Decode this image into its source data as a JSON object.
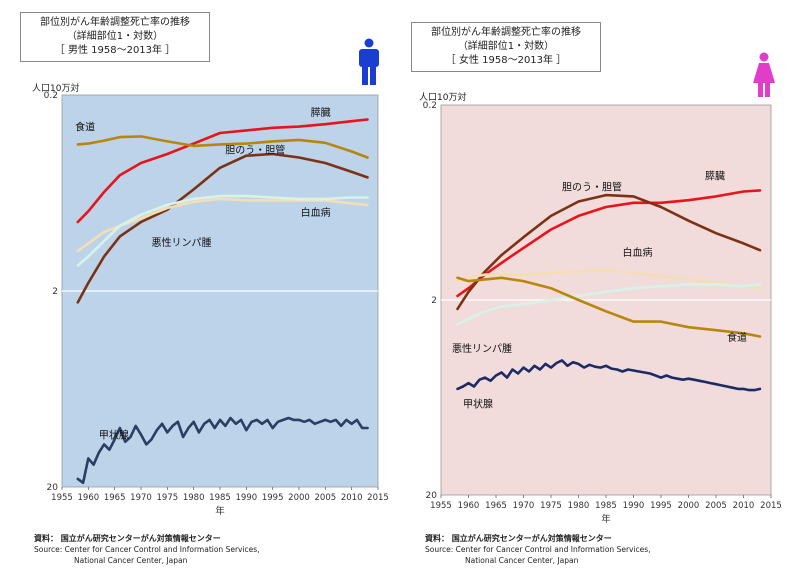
{
  "charts": [
    {
      "title_line1": "部位別がん年齢調整死亡率の推移",
      "title_line2": "（詳細部位1・対数）",
      "title_line3": "［ 男性 1958～2013年 ］",
      "ylabel": "人口10万対",
      "xlabel": "年",
      "icon": "male-figure-icon",
      "icon_color": "#1a3fd0",
      "bg_color": "#bdd3ea",
      "source_line1": "資料： 国立がん研究センターがん対策情報センター",
      "source_line2": "Source: Center for Cancer Control and Information Services,",
      "source_line3": "National Cancer Center, Japan",
      "ytick_labels": [
        "20",
        "2",
        "0.2"
      ]
    },
    {
      "title_line1": "部位別がん年齢調整死亡率の推移",
      "title_line2": "（詳細部位1・対数）",
      "title_line3": "［ 女性 1958～2013年 ］",
      "ylabel": "人口10万対",
      "xlabel": "年",
      "icon": "female-figure-icon",
      "icon_color": "#e13dc8",
      "bg_color": "#f2dcdb",
      "source_line1": "資料： 国立がん研究センターがん対策情報センター",
      "source_line2": "Source: Center for Cancer Control and Information Services,",
      "source_line3": "National Cancer Center, Japan",
      "ytick_labels": [
        "20",
        "2",
        "0.2"
      ]
    }
  ],
  "chart_data": [
    {
      "type": "line",
      "title": "部位別がん年齢調整死亡率の推移",
      "xlabel": "年",
      "ylabel": "人口10万対",
      "y_scale": "log",
      "xlim": [
        1955,
        2015
      ],
      "ylim": [
        0.2,
        20
      ],
      "xticks": [
        1955,
        1960,
        1965,
        1970,
        1975,
        1980,
        1985,
        1990,
        1995,
        2000,
        2005,
        2010,
        2015
      ],
      "yticks": [
        0.2,
        2,
        20
      ],
      "series": [
        {
          "name": "膵臓",
          "color": "#e8141c",
          "x": [
            1958,
            1960,
            1963,
            1966,
            1970,
            1975,
            1980,
            1985,
            1990,
            1995,
            2000,
            2005,
            2010,
            2013
          ],
          "y": [
            4.5,
            5.1,
            6.4,
            7.8,
            9.0,
            10.0,
            11.3,
            12.8,
            13.2,
            13.6,
            13.8,
            14.2,
            14.7,
            15.0
          ]
        },
        {
          "name": "食道",
          "color": "#b8860b",
          "x": [
            1958,
            1960,
            1963,
            1966,
            1970,
            1975,
            1980,
            1985,
            1990,
            1995,
            2000,
            2005,
            2010,
            2013
          ],
          "y": [
            11.2,
            11.3,
            11.7,
            12.2,
            12.3,
            11.6,
            11.0,
            11.2,
            11.3,
            11.6,
            11.8,
            11.4,
            10.3,
            9.6
          ]
        },
        {
          "name": "胆のう・胆管",
          "color": "#7b3214",
          "x": [
            1958,
            1960,
            1963,
            1966,
            1970,
            1975,
            1980,
            1985,
            1990,
            1995,
            2000,
            2005,
            2010,
            2013
          ],
          "y": [
            1.75,
            2.2,
            3.0,
            3.8,
            4.5,
            5.2,
            6.6,
            8.5,
            9.8,
            10.0,
            9.6,
            9.0,
            8.1,
            7.6
          ]
        },
        {
          "name": "悪性リンパ腫",
          "color": "#f5deb3",
          "x": [
            1958,
            1960,
            1963,
            1966,
            1970,
            1975,
            1980,
            1985,
            1990,
            1995,
            2000,
            2005,
            2010,
            2013
          ],
          "y": [
            3.2,
            3.5,
            4.0,
            4.3,
            4.7,
            5.3,
            5.7,
            5.9,
            5.8,
            5.8,
            5.8,
            5.8,
            5.6,
            5.5
          ]
        },
        {
          "name": "白血病",
          "color": "#d7f3e8",
          "x": [
            1958,
            1960,
            1963,
            1966,
            1970,
            1975,
            1980,
            1985,
            1990,
            1995,
            2000,
            2005,
            2010,
            2013
          ],
          "y": [
            2.7,
            3.0,
            3.6,
            4.3,
            4.9,
            5.5,
            5.9,
            6.1,
            6.1,
            6.0,
            5.9,
            5.9,
            6.0,
            6.0
          ]
        },
        {
          "name": "甲状腺",
          "color": "#2b3f63",
          "x": [
            1958,
            1959,
            1960,
            1961,
            1962,
            1963,
            1964,
            1965,
            1966,
            1967,
            1968,
            1969,
            1970,
            1971,
            1972,
            1973,
            1974,
            1975,
            1976,
            1977,
            1978,
            1979,
            1980,
            1981,
            1982,
            1983,
            1984,
            1985,
            1986,
            1987,
            1988,
            1989,
            1990,
            1991,
            1992,
            1993,
            1994,
            1995,
            1996,
            1997,
            1998,
            1999,
            2000,
            2001,
            2002,
            2003,
            2004,
            2005,
            2006,
            2007,
            2008,
            2009,
            2010,
            2011,
            2012,
            2013
          ],
          "y": [
            0.22,
            0.21,
            0.28,
            0.26,
            0.3,
            0.33,
            0.31,
            0.35,
            0.4,
            0.34,
            0.36,
            0.41,
            0.37,
            0.33,
            0.35,
            0.39,
            0.42,
            0.38,
            0.41,
            0.43,
            0.36,
            0.4,
            0.43,
            0.38,
            0.42,
            0.44,
            0.4,
            0.44,
            0.41,
            0.45,
            0.42,
            0.44,
            0.39,
            0.43,
            0.44,
            0.42,
            0.44,
            0.4,
            0.43,
            0.44,
            0.45,
            0.44,
            0.44,
            0.43,
            0.44,
            0.42,
            0.43,
            0.44,
            0.43,
            0.44,
            0.41,
            0.44,
            0.42,
            0.44,
            0.4,
            0.4
          ]
        }
      ]
    },
    {
      "type": "line",
      "title": "部位別がん年齢調整死亡率の推移",
      "xlabel": "年",
      "ylabel": "人口10万対",
      "y_scale": "log",
      "xlim": [
        1955,
        2015
      ],
      "ylim": [
        0.2,
        20
      ],
      "xticks": [
        1955,
        1960,
        1965,
        1970,
        1975,
        1980,
        1985,
        1990,
        1995,
        2000,
        2005,
        2010,
        2015
      ],
      "yticks": [
        0.2,
        2,
        20
      ],
      "series": [
        {
          "name": "膵臓",
          "color": "#e8141c",
          "x": [
            1958,
            1960,
            1963,
            1966,
            1970,
            1975,
            1980,
            1985,
            1990,
            1995,
            2000,
            2005,
            2010,
            2013
          ],
          "y": [
            2.1,
            2.3,
            2.7,
            3.1,
            3.7,
            4.6,
            5.4,
            6.0,
            6.3,
            6.3,
            6.5,
            6.8,
            7.2,
            7.3
          ]
        },
        {
          "name": "胆のう・胆管",
          "color": "#7b3214",
          "x": [
            1958,
            1960,
            1963,
            1966,
            1970,
            1975,
            1980,
            1985,
            1990,
            1995,
            2000,
            2005,
            2010,
            2013
          ],
          "y": [
            1.8,
            2.2,
            2.8,
            3.4,
            4.2,
            5.4,
            6.4,
            6.9,
            6.8,
            6.0,
            5.1,
            4.4,
            3.9,
            3.6
          ]
        },
        {
          "name": "白血病",
          "color": "#f5deb3",
          "x": [
            1958,
            1960,
            1963,
            1966,
            1970,
            1975,
            1980,
            1985,
            1990,
            1995,
            2000,
            2005,
            2010,
            2013
          ],
          "y": [
            2.5,
            2.6,
            2.7,
            2.7,
            2.7,
            2.75,
            2.8,
            2.85,
            2.75,
            2.65,
            2.55,
            2.45,
            2.35,
            2.3
          ]
        },
        {
          "name": "悪性リンパ腫",
          "color": "#d7f3e8",
          "x": [
            1958,
            1960,
            1963,
            1966,
            1970,
            1975,
            1980,
            1985,
            1990,
            1995,
            2000,
            2005,
            2010,
            2013
          ],
          "y": [
            1.5,
            1.6,
            1.75,
            1.85,
            1.9,
            2.0,
            2.1,
            2.2,
            2.3,
            2.35,
            2.4,
            2.4,
            2.35,
            2.4
          ]
        },
        {
          "name": "食道",
          "color": "#b8860b",
          "x": [
            1958,
            1960,
            1963,
            1966,
            1970,
            1975,
            1980,
            1985,
            1990,
            1995,
            2000,
            2005,
            2010,
            2013
          ],
          "y": [
            2.6,
            2.5,
            2.55,
            2.6,
            2.5,
            2.3,
            2.0,
            1.75,
            1.55,
            1.55,
            1.45,
            1.4,
            1.35,
            1.3
          ]
        },
        {
          "name": "甲状腺",
          "color": "#1c2a66",
          "x": [
            1958,
            1959,
            1960,
            1961,
            1962,
            1963,
            1964,
            1965,
            1966,
            1967,
            1968,
            1969,
            1970,
            1971,
            1972,
            1973,
            1974,
            1975,
            1976,
            1977,
            1978,
            1979,
            1980,
            1981,
            1982,
            1983,
            1984,
            1985,
            1986,
            1987,
            1988,
            1989,
            1990,
            1991,
            1992,
            1993,
            1994,
            1995,
            1996,
            1997,
            1998,
            1999,
            2000,
            2001,
            2002,
            2003,
            2004,
            2005,
            2006,
            2007,
            2008,
            2009,
            2010,
            2011,
            2012,
            2013
          ],
          "y": [
            0.7,
            0.72,
            0.75,
            0.72,
            0.78,
            0.8,
            0.77,
            0.82,
            0.85,
            0.8,
            0.88,
            0.84,
            0.9,
            0.86,
            0.92,
            0.88,
            0.94,
            0.9,
            0.95,
            0.98,
            0.92,
            0.96,
            0.94,
            0.9,
            0.93,
            0.91,
            0.9,
            0.92,
            0.89,
            0.88,
            0.86,
            0.88,
            0.87,
            0.86,
            0.85,
            0.84,
            0.82,
            0.8,
            0.82,
            0.8,
            0.79,
            0.78,
            0.79,
            0.78,
            0.77,
            0.76,
            0.75,
            0.74,
            0.73,
            0.72,
            0.71,
            0.7,
            0.7,
            0.69,
            0.69,
            0.7
          ]
        }
      ]
    }
  ]
}
